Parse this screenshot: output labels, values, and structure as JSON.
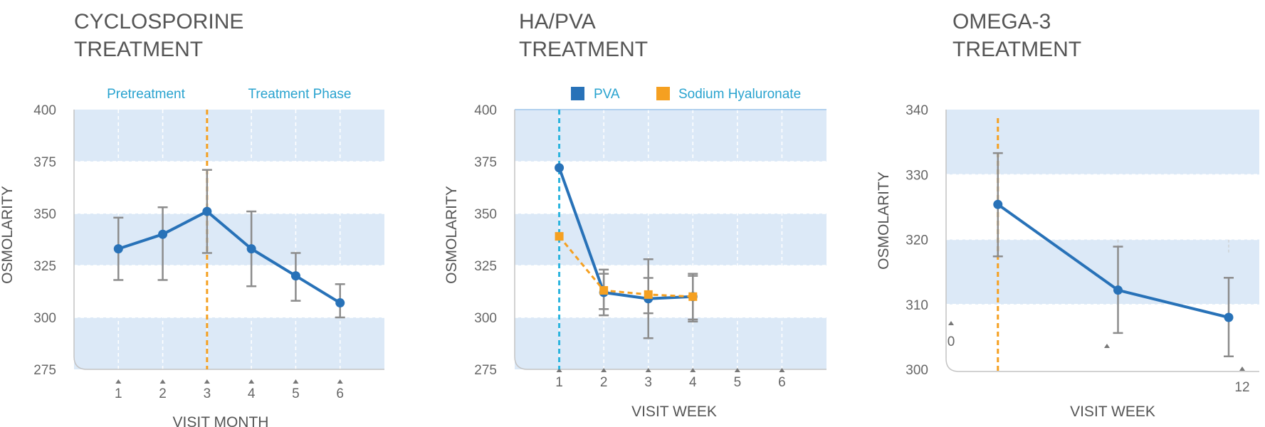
{
  "colors": {
    "band": "#dce9f7",
    "series_blue": "#2872b8",
    "series_orange": "#f5a021",
    "marker_cyan": "#2bb4de",
    "error_bar": "#8c8c8c",
    "phase_text": "#29a3cf"
  },
  "chart_data": [
    {
      "type": "line",
      "title": "CYCLOSPORINE\nTREATMENT",
      "title_lines": [
        "CYCLOSPORINE",
        "TREATMENT"
      ],
      "xlabel": "VISIT MONTH",
      "ylabel": "OSMOLARITY",
      "ylim": [
        275,
        400
      ],
      "yticks": [
        400,
        375,
        350,
        325,
        300,
        275
      ],
      "xticks": [
        1,
        2,
        3,
        4,
        5,
        6
      ],
      "xlim": [
        0,
        7
      ],
      "annotations": [
        "Pretreatment",
        "Treatment Phase"
      ],
      "vertical_marker_x": 3,
      "series": [
        {
          "name": "",
          "x": [
            1,
            2,
            3,
            4,
            5,
            6
          ],
          "values": [
            333,
            340,
            351,
            333,
            320,
            307
          ],
          "err_low": [
            318,
            318,
            331,
            315,
            308,
            300
          ],
          "err_high": [
            348,
            353,
            371,
            351,
            331,
            316
          ],
          "style": "solid",
          "marker": "circle"
        }
      ]
    },
    {
      "type": "line",
      "title": "HA/PVA\nTREATMENT",
      "title_lines": [
        "HA/PVA",
        "TREATMENT"
      ],
      "xlabel": "VISIT WEEK",
      "ylabel": "OSMOLARITY",
      "ylim": [
        275,
        400
      ],
      "yticks": [
        400,
        375,
        350,
        325,
        300,
        275
      ],
      "xticks": [
        1,
        2,
        3,
        4,
        5,
        6
      ],
      "xlim": [
        0,
        7
      ],
      "legend_position": "top",
      "vertical_marker_x": 1,
      "series": [
        {
          "name": "PVA",
          "x": [
            1,
            2,
            3,
            4
          ],
          "values": [
            372,
            312,
            309,
            310
          ],
          "err_low": [
            null,
            301,
            290,
            298
          ],
          "err_high": [
            null,
            323,
            328,
            321
          ],
          "style": "solid",
          "marker": "circle"
        },
        {
          "name": "Sodium Hyaluronate",
          "x": [
            1,
            2,
            3,
            4
          ],
          "values": [
            339,
            313,
            311,
            310
          ],
          "err_low": [
            null,
            304,
            302,
            299
          ],
          "err_high": [
            null,
            321,
            319,
            320
          ],
          "style": "dashed",
          "marker": "square"
        }
      ]
    },
    {
      "type": "line",
      "title": "OMEGA-3\nTREATMENT",
      "title_lines": [
        "OMEGA-3",
        "TREATMENT"
      ],
      "xlabel": "VISIT WEEK",
      "ylabel": "OSMOLARITY",
      "ylim": [
        300,
        340
      ],
      "yticks": [
        340,
        330,
        320,
        310,
        300
      ],
      "xticks": [
        0,
        12
      ],
      "xlim": [
        0,
        13.3
      ],
      "vertical_marker_x": 2.2,
      "series": [
        {
          "name": "",
          "x": [
            2.2,
            7.3,
            12
          ],
          "values": [
            325.4,
            312.2,
            308
          ],
          "err_low": [
            317.4,
            305.6,
            302
          ],
          "err_high": [
            333.3,
            318.9,
            314.1
          ],
          "style": "solid",
          "marker": "circle"
        }
      ]
    }
  ]
}
